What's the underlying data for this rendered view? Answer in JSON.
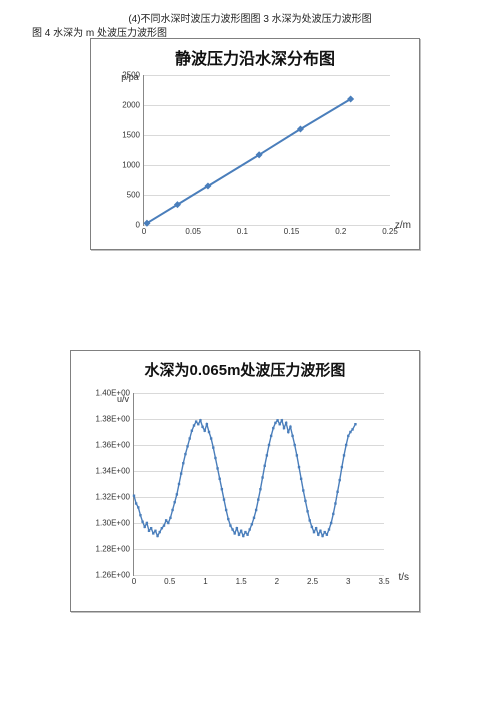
{
  "captions": {
    "top": "(4)不同水深时波压力波形图图 3 水深为处波压力波形图",
    "left": "图 4 水深为 m 处波压力波形图"
  },
  "chart1": {
    "type": "line",
    "title": "静波压力沿水深分布图",
    "title_fontsize": 16,
    "ylabel": "p/pa",
    "xlabel": "z/m",
    "background_color": "#ffffff",
    "grid_color": "#d9d9d9",
    "axis_color": "#888888",
    "line_color": "#4a7ebb",
    "marker_color": "#4a7ebb",
    "marker": "diamond",
    "marker_size": 5,
    "line_width": 2,
    "xlim": [
      0,
      0.25
    ],
    "ylim": [
      0,
      2500
    ],
    "xticks": [
      0,
      0.05,
      0.1,
      0.15,
      0.2,
      0.25
    ],
    "yticks": [
      0,
      500,
      1000,
      1500,
      2000,
      2500
    ],
    "tick_fontsize": 8,
    "x": [
      0.003,
      0.034,
      0.065,
      0.117,
      0.159,
      0.21
    ],
    "y": [
      30,
      340,
      650,
      1170,
      1600,
      2100
    ]
  },
  "chart2": {
    "type": "line",
    "title": "水深为0.065m处波压力波形图",
    "title_fontsize": 15,
    "ylabel": "u/v",
    "xlabel": "t/s",
    "background_color": "#ffffff",
    "grid_color": "#d9d9d9",
    "axis_color": "#888888",
    "line_color": "#4a7ebb",
    "marker_color": "#4a7ebb",
    "marker": "square",
    "marker_size": 2.4,
    "line_width": 1.4,
    "xlim": [
      0,
      3.5
    ],
    "ylim": [
      1.26,
      1.4
    ],
    "xticks": [
      0,
      0.5,
      1,
      1.5,
      2,
      2.5,
      3,
      3.5
    ],
    "yticks": [
      1.26,
      1.28,
      1.3,
      1.32,
      1.34,
      1.36,
      1.38,
      1.4
    ],
    "ytick_labels": [
      "1.26E+00",
      "1.28E+00",
      "1.30E+00",
      "1.32E+00",
      "1.34E+00",
      "1.36E+00",
      "1.38E+00",
      "1.40E+00"
    ],
    "tick_fontsize": 8,
    "x": [
      0.0,
      0.03,
      0.06,
      0.09,
      0.12,
      0.15,
      0.18,
      0.21,
      0.24,
      0.27,
      0.3,
      0.33,
      0.36,
      0.39,
      0.42,
      0.45,
      0.48,
      0.51,
      0.54,
      0.57,
      0.6,
      0.63,
      0.66,
      0.69,
      0.72,
      0.75,
      0.78,
      0.81,
      0.84,
      0.87,
      0.9,
      0.93,
      0.96,
      0.99,
      1.02,
      1.05,
      1.08,
      1.11,
      1.14,
      1.17,
      1.2,
      1.23,
      1.26,
      1.29,
      1.32,
      1.35,
      1.38,
      1.41,
      1.44,
      1.47,
      1.5,
      1.53,
      1.56,
      1.59,
      1.62,
      1.65,
      1.68,
      1.71,
      1.74,
      1.77,
      1.8,
      1.83,
      1.86,
      1.89,
      1.92,
      1.95,
      1.98,
      2.01,
      2.04,
      2.07,
      2.1,
      2.13,
      2.16,
      2.19,
      2.22,
      2.25,
      2.28,
      2.31,
      2.34,
      2.37,
      2.4,
      2.43,
      2.46,
      2.49,
      2.52,
      2.55,
      2.58,
      2.61,
      2.64,
      2.67,
      2.7,
      2.73,
      2.76,
      2.79,
      2.82,
      2.85,
      2.88,
      2.91,
      2.94,
      2.97,
      3.0,
      3.03,
      3.06,
      3.1
    ],
    "y": [
      1.321,
      1.315,
      1.312,
      1.306,
      1.301,
      1.297,
      1.3,
      1.294,
      1.296,
      1.292,
      1.294,
      1.29,
      1.293,
      1.296,
      1.298,
      1.302,
      1.3,
      1.304,
      1.31,
      1.316,
      1.322,
      1.33,
      1.338,
      1.346,
      1.353,
      1.359,
      1.365,
      1.371,
      1.375,
      1.378,
      1.376,
      1.379,
      1.374,
      1.371,
      1.376,
      1.37,
      1.365,
      1.358,
      1.35,
      1.342,
      1.334,
      1.326,
      1.318,
      1.31,
      1.303,
      1.298,
      1.295,
      1.292,
      1.296,
      1.291,
      1.294,
      1.29,
      1.293,
      1.291,
      1.295,
      1.299,
      1.304,
      1.31,
      1.318,
      1.326,
      1.335,
      1.344,
      1.352,
      1.36,
      1.367,
      1.373,
      1.377,
      1.379,
      1.376,
      1.379,
      1.373,
      1.377,
      1.37,
      1.374,
      1.367,
      1.36,
      1.352,
      1.343,
      1.334,
      1.325,
      1.317,
      1.309,
      1.302,
      1.297,
      1.293,
      1.296,
      1.291,
      1.294,
      1.29,
      1.293,
      1.291,
      1.295,
      1.3,
      1.307,
      1.315,
      1.324,
      1.333,
      1.343,
      1.352,
      1.36,
      1.367,
      1.37,
      1.372,
      1.376
    ]
  }
}
